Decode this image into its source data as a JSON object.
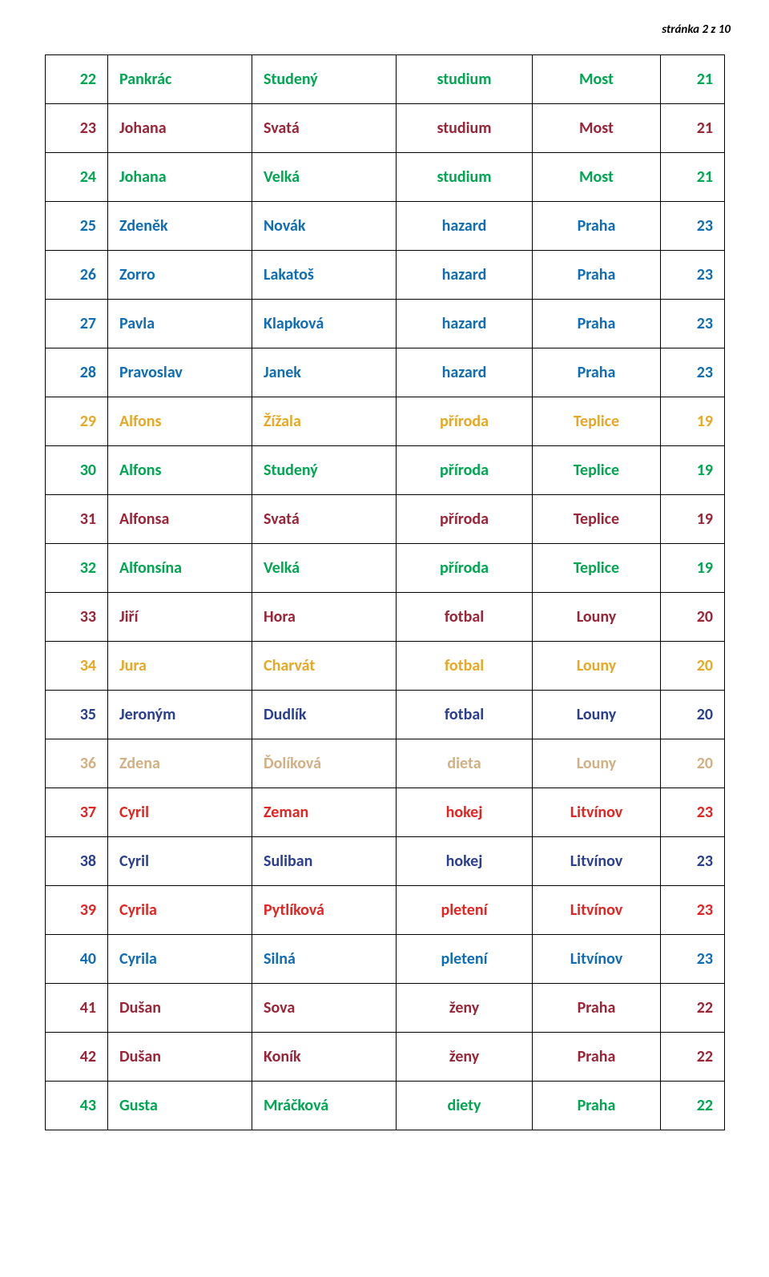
{
  "page_label": "stránka 2 z 10",
  "colors": {
    "green": "#00a650",
    "maroon": "#9b2437",
    "blue": "#0f6db5",
    "gold": "#e6a825",
    "tan": "#d2b083",
    "red": "#e52321",
    "darkblue": "#2a3e92"
  },
  "rows": [
    {
      "n": "22",
      "first": "Pankrác",
      "last": "Studený",
      "topic": "studium",
      "city": "Most",
      "v": "21",
      "color": "green"
    },
    {
      "n": "23",
      "first": "Johana",
      "last": "Svatá",
      "topic": "studium",
      "city": "Most",
      "v": "21",
      "color": "maroon"
    },
    {
      "n": "24",
      "first": "Johana",
      "last": "Velká",
      "topic": "studium",
      "city": "Most",
      "v": "21",
      "color": "green"
    },
    {
      "n": "25",
      "first": "Zdeněk",
      "last": "Novák",
      "topic": "hazard",
      "city": "Praha",
      "v": "23",
      "color": "blue"
    },
    {
      "n": "26",
      "first": "Zorro",
      "last": "Lakatoš",
      "topic": "hazard",
      "city": "Praha",
      "v": "23",
      "color": "blue"
    },
    {
      "n": "27",
      "first": "Pavla",
      "last": "Klapková",
      "topic": "hazard",
      "city": "Praha",
      "v": "23",
      "color": "blue"
    },
    {
      "n": "28",
      "first": "Pravoslav",
      "last": "Janek",
      "topic": "hazard",
      "city": "Praha",
      "v": "23",
      "color": "blue"
    },
    {
      "n": "29",
      "first": "Alfons",
      "last": "Žížala",
      "topic": "příroda",
      "city": "Teplice",
      "v": "19",
      "color": "gold"
    },
    {
      "n": "30",
      "first": "Alfons",
      "last": "Studený",
      "topic": "příroda",
      "city": "Teplice",
      "v": "19",
      "color": "green"
    },
    {
      "n": "31",
      "first": "Alfonsa",
      "last": "Svatá",
      "topic": "příroda",
      "city": "Teplice",
      "v": "19",
      "color": "maroon"
    },
    {
      "n": "32",
      "first": "Alfonsína",
      "last": "Velká",
      "topic": "příroda",
      "city": "Teplice",
      "v": "19",
      "color": "green"
    },
    {
      "n": "33",
      "first": "Jiří",
      "last": "Hora",
      "topic": "fotbal",
      "city": "Louny",
      "v": "20",
      "color": "maroon"
    },
    {
      "n": "34",
      "first": "Jura",
      "last": "Charvát",
      "topic": "fotbal",
      "city": "Louny",
      "v": "20",
      "color": "gold"
    },
    {
      "n": "35",
      "first": "Jeroným",
      "last": "Dudlík",
      "topic": "fotbal",
      "city": "Louny",
      "v": "20",
      "color": "darkblue"
    },
    {
      "n": "36",
      "first": "Zdena",
      "last": "Ďolíková",
      "topic": "dieta",
      "city": "Louny",
      "v": "20",
      "color": "tan"
    },
    {
      "n": "37",
      "first": "Cyril",
      "last": "Zeman",
      "topic": "hokej",
      "city": "Litvínov",
      "v": "23",
      "color": "red"
    },
    {
      "n": "38",
      "first": "Cyril",
      "last": "Suliban",
      "topic": "hokej",
      "city": "Litvínov",
      "v": "23",
      "color": "darkblue"
    },
    {
      "n": "39",
      "first": "Cyrila",
      "last": "Pytlíková",
      "topic": "pletení",
      "city": "Litvínov",
      "v": "23",
      "color": "red"
    },
    {
      "n": "40",
      "first": "Cyrila",
      "last": "Silná",
      "topic": "pletení",
      "city": "Litvínov",
      "v": "23",
      "color": "blue"
    },
    {
      "n": "41",
      "first": "Dušan",
      "last": "Sova",
      "topic": "ženy",
      "city": "Praha",
      "v": "22",
      "color": "maroon"
    },
    {
      "n": "42",
      "first": "Dušan",
      "last": "Koník",
      "topic": "ženy",
      "city": "Praha",
      "v": "22",
      "color": "maroon"
    },
    {
      "n": "43",
      "first": "Gusta",
      "last": "Mráčková",
      "topic": "diety",
      "city": "Praha",
      "v": "22",
      "color": "green"
    }
  ]
}
